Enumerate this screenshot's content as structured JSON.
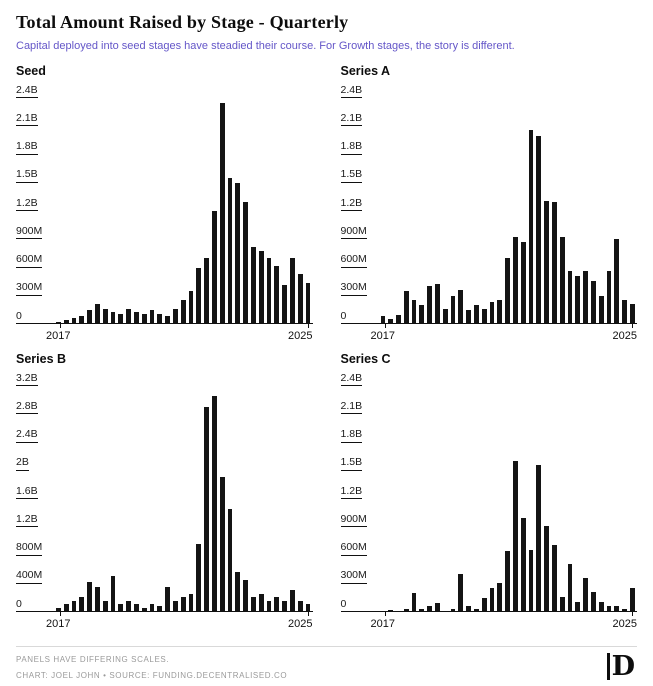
{
  "header": {
    "title": "Total Amount Raised by Stage - Quarterly",
    "subtitle": "Capital deployed into seed stages have steadied their course. For Growth stages, the story is different."
  },
  "footer": {
    "note": "PANELS HAVE DIFFERING SCALES.",
    "credit": "CHART: JOEL JOHN • SOURCE: FUNDING.DECENTRALISED.CO",
    "logo_glyph": "D"
  },
  "colors": {
    "bar": "#141414",
    "subtitle_accent": "#6456c8",
    "muted_text": "#9a9a9a"
  },
  "chart_data": [
    {
      "type": "bar",
      "title": "Seed",
      "unit": "USD (M = millions, B = billions)",
      "x_start_label": "2017",
      "x_end_label": "2025",
      "ymax": 2400,
      "yticks": [
        {
          "label": "2.4B",
          "value": 2400
        },
        {
          "label": "2.1B",
          "value": 2100
        },
        {
          "label": "1.8B",
          "value": 1800
        },
        {
          "label": "1.5B",
          "value": 1500
        },
        {
          "label": "1.2B",
          "value": 1200
        },
        {
          "label": "900M",
          "value": 900
        },
        {
          "label": "600M",
          "value": 600
        },
        {
          "label": "300M",
          "value": 300
        },
        {
          "label": "0",
          "value": 0
        }
      ],
      "categories": [
        "2017 Q1",
        "2017 Q2",
        "2017 Q3",
        "2017 Q4",
        "2018 Q1",
        "2018 Q2",
        "2018 Q3",
        "2018 Q4",
        "2019 Q1",
        "2019 Q2",
        "2019 Q3",
        "2019 Q4",
        "2020 Q1",
        "2020 Q2",
        "2020 Q3",
        "2020 Q4",
        "2021 Q1",
        "2021 Q2",
        "2021 Q3",
        "2021 Q4",
        "2022 Q1",
        "2022 Q2",
        "2022 Q3",
        "2022 Q4",
        "2023 Q1",
        "2023 Q2",
        "2023 Q3",
        "2023 Q4",
        "2024 Q1",
        "2024 Q2",
        "2024 Q3",
        "2024 Q4",
        "2025 Q1"
      ],
      "values": [
        20,
        40,
        60,
        90,
        150,
        210,
        160,
        130,
        110,
        160,
        130,
        110,
        150,
        110,
        90,
        160,
        250,
        350,
        600,
        700,
        1200,
        2350,
        1550,
        1500,
        1300,
        820,
        780,
        700,
        620,
        410,
        700,
        530,
        440
      ]
    },
    {
      "type": "bar",
      "title": "Series A",
      "unit": "USD (M = millions, B = billions)",
      "x_start_label": "2017",
      "x_end_label": "2025",
      "ymax": 2400,
      "yticks": [
        {
          "label": "2.4B",
          "value": 2400
        },
        {
          "label": "2.1B",
          "value": 2100
        },
        {
          "label": "1.8B",
          "value": 1800
        },
        {
          "label": "1.5B",
          "value": 1500
        },
        {
          "label": "1.2B",
          "value": 1200
        },
        {
          "label": "900M",
          "value": 900
        },
        {
          "label": "600M",
          "value": 600
        },
        {
          "label": "300M",
          "value": 300
        },
        {
          "label": "0",
          "value": 0
        }
      ],
      "categories": [
        "2017 Q1",
        "2017 Q2",
        "2017 Q3",
        "2017 Q4",
        "2018 Q1",
        "2018 Q2",
        "2018 Q3",
        "2018 Q4",
        "2019 Q1",
        "2019 Q2",
        "2019 Q3",
        "2019 Q4",
        "2020 Q1",
        "2020 Q2",
        "2020 Q3",
        "2020 Q4",
        "2021 Q1",
        "2021 Q2",
        "2021 Q3",
        "2021 Q4",
        "2022 Q1",
        "2022 Q2",
        "2022 Q3",
        "2022 Q4",
        "2023 Q1",
        "2023 Q2",
        "2023 Q3",
        "2023 Q4",
        "2024 Q1",
        "2024 Q2",
        "2024 Q3",
        "2024 Q4",
        "2025 Q1"
      ],
      "values": [
        80,
        50,
        100,
        350,
        260,
        200,
        400,
        420,
        160,
        300,
        360,
        150,
        200,
        160,
        230,
        260,
        700,
        920,
        870,
        2060,
        2000,
        1310,
        1300,
        920,
        560,
        510,
        560,
        460,
        300,
        560,
        900,
        260,
        210
      ]
    },
    {
      "type": "bar",
      "title": "Series B",
      "unit": "USD (M = millions, B = billions)",
      "x_start_label": "2017",
      "x_end_label": "2025",
      "ymax": 3200,
      "yticks": [
        {
          "label": "3.2B",
          "value": 3200
        },
        {
          "label": "2.8B",
          "value": 2800
        },
        {
          "label": "2.4B",
          "value": 2400
        },
        {
          "label": "2B",
          "value": 2000
        },
        {
          "label": "1.6B",
          "value": 1600
        },
        {
          "label": "1.2B",
          "value": 1200
        },
        {
          "label": "800M",
          "value": 800
        },
        {
          "label": "400M",
          "value": 400
        },
        {
          "label": "0",
          "value": 0
        }
      ],
      "categories": [
        "2017 Q1",
        "2017 Q2",
        "2017 Q3",
        "2017 Q4",
        "2018 Q1",
        "2018 Q2",
        "2018 Q3",
        "2018 Q4",
        "2019 Q1",
        "2019 Q2",
        "2019 Q3",
        "2019 Q4",
        "2020 Q1",
        "2020 Q2",
        "2020 Q3",
        "2020 Q4",
        "2021 Q1",
        "2021 Q2",
        "2021 Q3",
        "2021 Q4",
        "2022 Q1",
        "2022 Q2",
        "2022 Q3",
        "2022 Q4",
        "2023 Q1",
        "2023 Q2",
        "2023 Q3",
        "2023 Q4",
        "2024 Q1",
        "2024 Q2",
        "2024 Q3",
        "2024 Q4",
        "2025 Q1"
      ],
      "values": [
        60,
        110,
        160,
        210,
        420,
        360,
        160,
        510,
        110,
        160,
        110,
        60,
        110,
        90,
        360,
        160,
        210,
        260,
        960,
        2900,
        3060,
        1910,
        1460,
        560,
        460,
        210,
        260,
        160,
        210,
        160,
        310,
        160,
        110
      ]
    },
    {
      "type": "bar",
      "title": "Series C",
      "unit": "USD (M = millions, B = billions)",
      "x_start_label": "2017",
      "x_end_label": "2025",
      "ymax": 2400,
      "yticks": [
        {
          "label": "2.4B",
          "value": 2400
        },
        {
          "label": "2.1B",
          "value": 2100
        },
        {
          "label": "1.8B",
          "value": 1800
        },
        {
          "label": "1.5B",
          "value": 1500
        },
        {
          "label": "1.2B",
          "value": 1200
        },
        {
          "label": "900M",
          "value": 900
        },
        {
          "label": "600M",
          "value": 600
        },
        {
          "label": "300M",
          "value": 300
        },
        {
          "label": "0",
          "value": 0
        }
      ],
      "categories": [
        "2017 Q1",
        "2017 Q2",
        "2017 Q3",
        "2017 Q4",
        "2018 Q1",
        "2018 Q2",
        "2018 Q3",
        "2018 Q4",
        "2019 Q1",
        "2019 Q2",
        "2019 Q3",
        "2019 Q4",
        "2020 Q1",
        "2020 Q2",
        "2020 Q3",
        "2020 Q4",
        "2021 Q1",
        "2021 Q2",
        "2021 Q3",
        "2021 Q4",
        "2022 Q1",
        "2022 Q2",
        "2022 Q3",
        "2022 Q4",
        "2023 Q1",
        "2023 Q2",
        "2023 Q3",
        "2023 Q4",
        "2024 Q1",
        "2024 Q2",
        "2024 Q3",
        "2024 Q4",
        "2025 Q1"
      ],
      "values": [
        10,
        20,
        5,
        30,
        200,
        30,
        60,
        100,
        5,
        30,
        400,
        60,
        30,
        150,
        260,
        310,
        650,
        1600,
        1000,
        660,
        1560,
        910,
        710,
        160,
        510,
        110,
        360,
        210,
        110,
        60,
        60,
        30,
        260
      ]
    }
  ]
}
